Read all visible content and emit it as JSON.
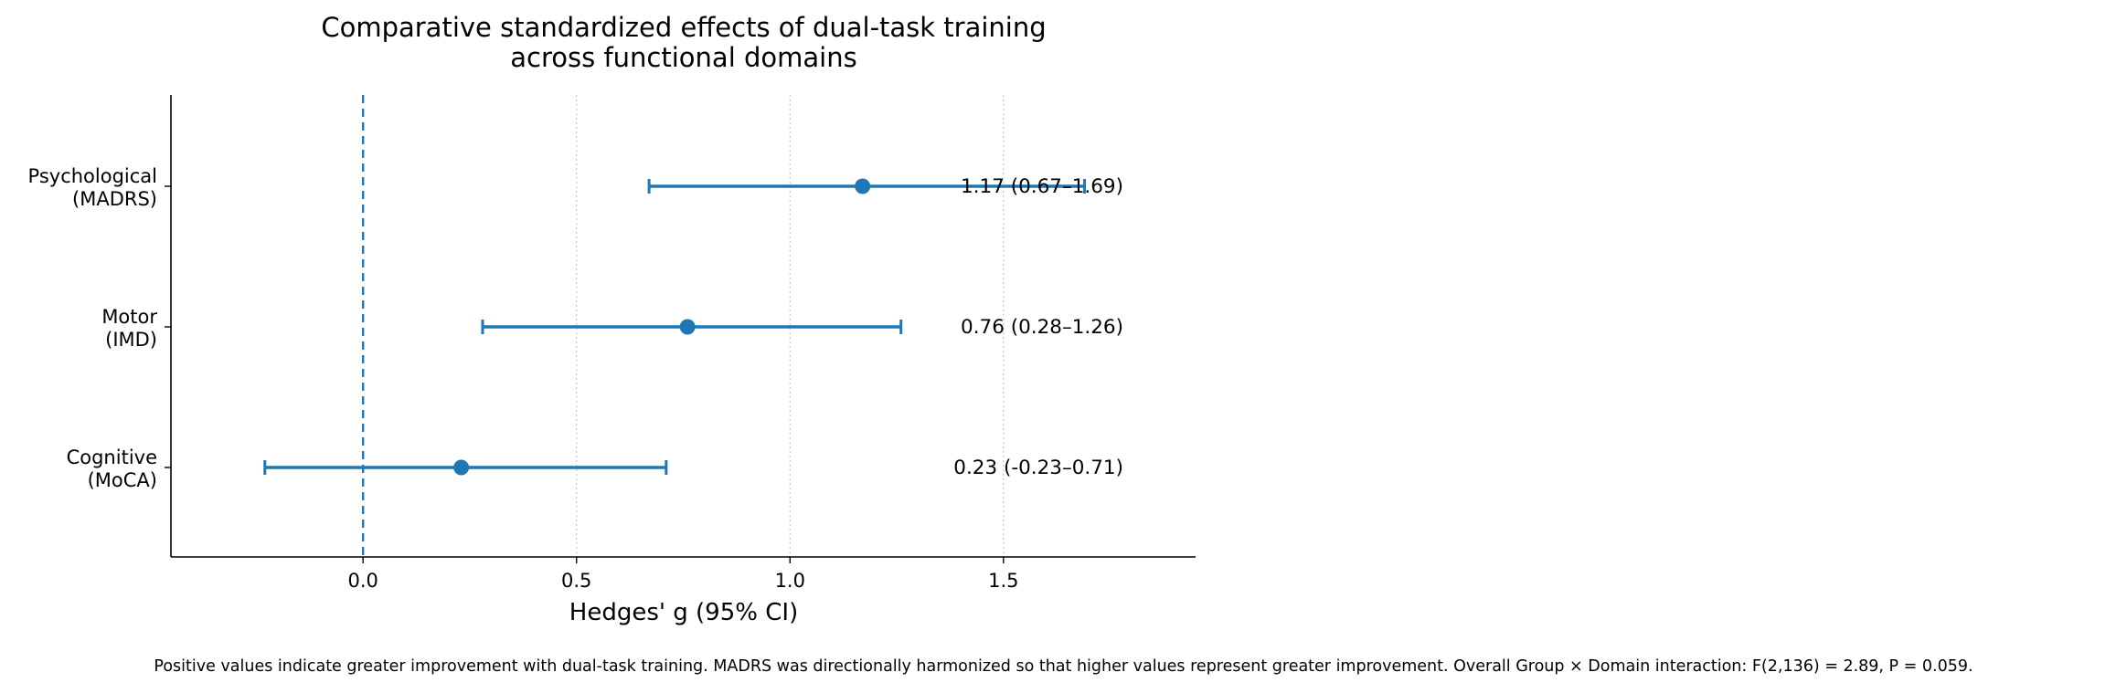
{
  "chart_data": {
    "type": "forest",
    "title_lines": [
      "Comparative standardized effects of dual-task training",
      "across functional domains"
    ],
    "xlabel": "Hedges' g (95% CI)",
    "xlim": [
      -0.45,
      1.95
    ],
    "xticks": [
      "0.0",
      "0.5",
      "1.0",
      "1.5"
    ],
    "xtick_values": [
      0.0,
      0.5,
      1.0,
      1.5
    ],
    "reference_line": 0,
    "grid": "x-dotted",
    "color": "#1f77b4",
    "rows": [
      {
        "label_lines": [
          "Psychological",
          "(MADRS)"
        ],
        "g": 1.17,
        "lo": 0.67,
        "hi": 1.69,
        "annotation": "1.17 (0.67–1.69)"
      },
      {
        "label_lines": [
          "Motor",
          "(IMD)"
        ],
        "g": 0.76,
        "lo": 0.28,
        "hi": 1.26,
        "annotation": "0.76 (0.28–1.26)"
      },
      {
        "label_lines": [
          "Cognitive",
          "(MoCA)"
        ],
        "g": 0.23,
        "lo": -0.23,
        "hi": 0.71,
        "annotation": "0.23 (-0.23–0.71)"
      }
    ]
  },
  "caption": "Positive values indicate greater improvement with dual-task training. MADRS was directionally harmonized so that higher values represent greater improvement. Overall Group × Domain interaction: F(2,136) = 2.89, P = 0.059."
}
